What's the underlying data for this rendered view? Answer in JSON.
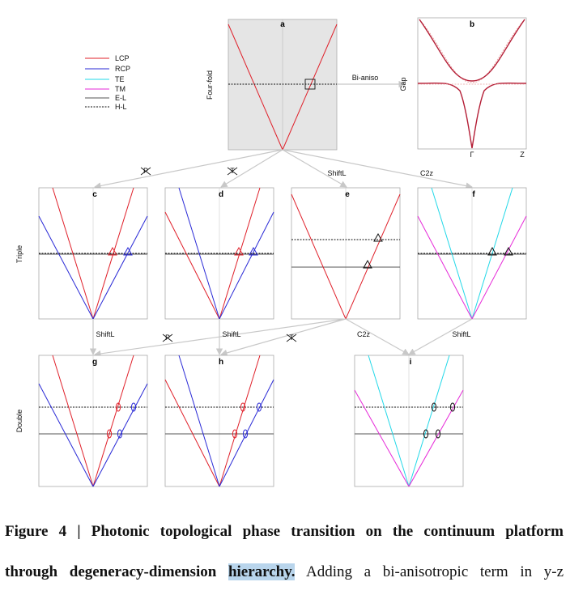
{
  "legend": [
    {
      "label": "LCP",
      "color": "#e0202a",
      "style": "solid"
    },
    {
      "label": "RCP",
      "color": "#2a2ad6",
      "style": "solid"
    },
    {
      "label": "TE",
      "color": "#22d8e8",
      "style": "solid"
    },
    {
      "label": "TM",
      "color": "#e62ad8",
      "style": "solid"
    },
    {
      "label": "E-L",
      "color": "#555555",
      "style": "solid"
    },
    {
      "label": "H-L",
      "color": "#111111",
      "style": "dashed"
    }
  ],
  "panels": {
    "a": {
      "label": "a",
      "row_label": "Four-fold"
    },
    "b": {
      "label": "b",
      "ylabel": "Gap",
      "ticks": [
        "Γ",
        "Z"
      ]
    },
    "c": {
      "label": "c"
    },
    "d": {
      "label": "d"
    },
    "e": {
      "label": "e"
    },
    "f": {
      "label": "f"
    },
    "g": {
      "label": "g"
    },
    "h": {
      "label": "h"
    },
    "i": {
      "label": "i"
    }
  },
  "row_labels": {
    "triple": "Triple",
    "double": "Double"
  },
  "arrows": {
    "a_b": "Bi-aniso",
    "a_c": "P",
    "a_d": "T",
    "a_e": "ShiftL",
    "a_f": "C2z",
    "c_g": "ShiftL",
    "e_g": "P",
    "d_h": "ShiftL",
    "e_h": "T",
    "e_i": "C2z",
    "f_i": "ShiftL"
  },
  "caption": {
    "figure_number": "Figure 4 |",
    "title_part1": "Photonic topological phase transition on the continuum platform",
    "title_part2": "through degeneracy-dimension",
    "highlight": "hierarchy.",
    "text": "Adding a bi-anisotropic term in y-z"
  }
}
